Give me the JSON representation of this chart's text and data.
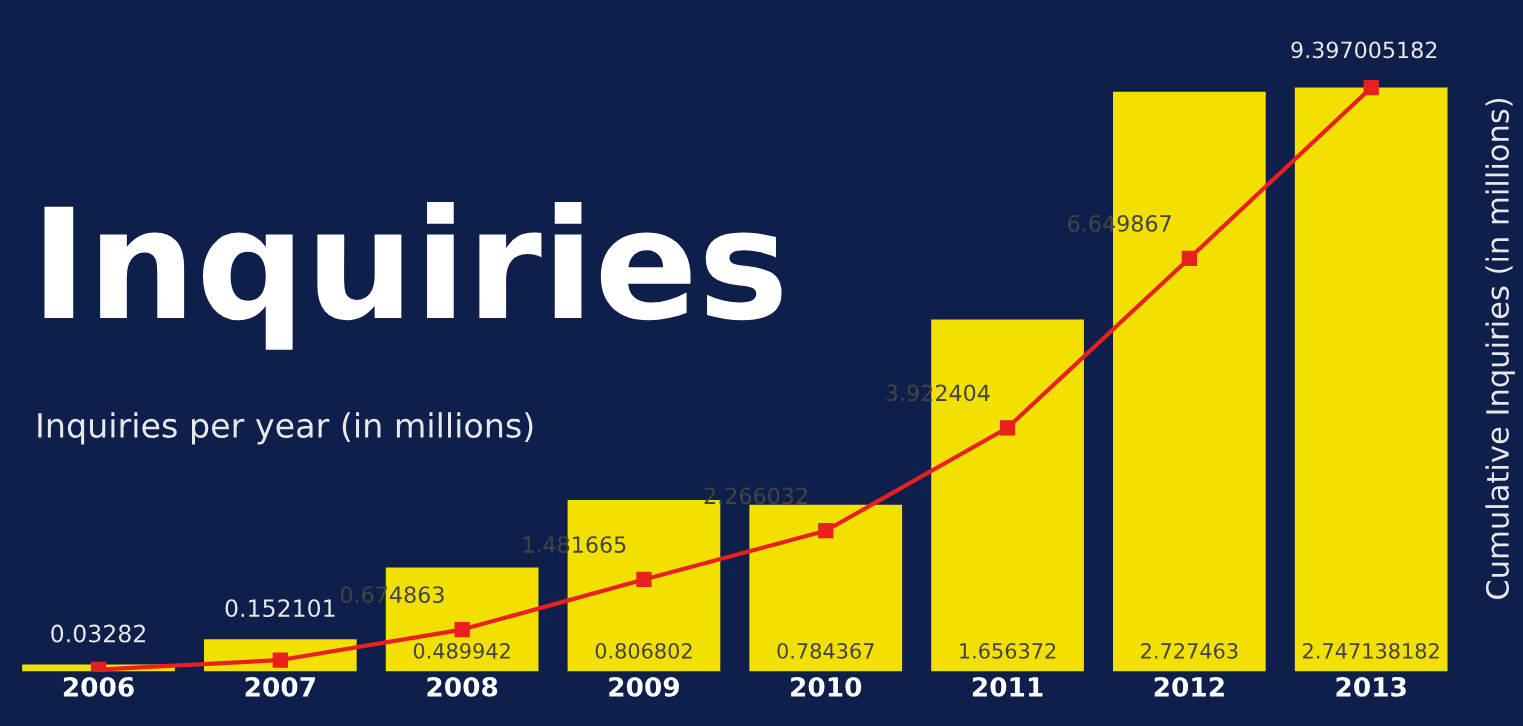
{
  "chart_data": {
    "type": "bar",
    "title": "Inquiries",
    "ylabel": "Inquiries per year (in millions)",
    "y2label": "Cumulative Inquiries (in millions)",
    "categories": [
      "2006",
      "2007",
      "2008",
      "2009",
      "2010",
      "2011",
      "2012",
      "2013"
    ],
    "series": [
      {
        "color": "#f2e000",
        "values": [
          0.03282,
          0.152101,
          0.489942,
          0.806802,
          0.784367,
          1.656372,
          2.727463,
          2.747138182
        ],
        "value_labels": [
          "0.03282",
          "0.152101",
          "0.489942",
          "0.806802",
          "0.784367",
          "1.656372",
          "2.727463",
          "2.747138182"
        ]
      },
      {
        "type": "line",
        "axis": "y2",
        "color": "#e8201e",
        "marker": "square",
        "values": [
          0.03282,
          0.184921,
          0.674863,
          1.481665,
          2.266032,
          3.922404,
          6.649867,
          9.397005182
        ],
        "value_labels": [
          null,
          null,
          "0.674863",
          "1.481665",
          "2.266032",
          "3.922404",
          "6.649867",
          "9.397005182"
        ]
      }
    ],
    "tick_labels": "x",
    "grid": false,
    "legend": false
  }
}
